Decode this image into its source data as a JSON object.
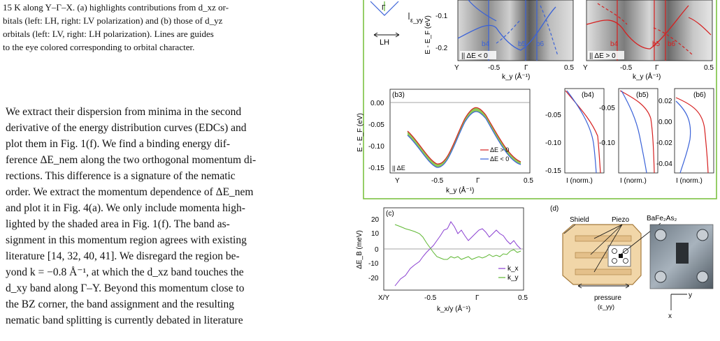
{
  "caption_lines": [
    "15 K along Y–Γ–X. (a) highlights contributions from d_xz or-",
    "bitals (left: LH, right: LV polarization) and (b) those of d_yz",
    "orbitals (left: LV, right: LH polarization). Lines are guides",
    "to the eye colored corresponding to orbital character."
  ],
  "body_lines": [
    "We extract their dispersion from minima in the second",
    "derivative of the energy distribution curves (EDCs) and",
    "plot them in Fig. 1(f). We find a binding energy dif-",
    "ference ΔE_nem along the two orthogonal momentum di-",
    "rections. This difference is a signature of the nematic",
    "order. We extract the momentum dependence of ΔE_nem",
    "and plot it in Fig. 4(a). We only include momenta high-",
    "lighted by the shaded area in Fig. 1(f). The band as-",
    "signment in this momentum region agrees with existing",
    "literature [14, 32, 40, 41]. We disregard the region be-",
    "yond k = −0.8 Å⁻¹, at which the d_xz band touches the",
    "d_xy band along Γ–Y. Beyond this momentum close to",
    "the BZ corner, the band assignment and the resulting",
    "nematic band splitting is currently debated in literature"
  ],
  "figure": {
    "top_left_panel": {
      "label": "|| ΔE < 0",
      "band_labels": [
        "b4",
        "b5",
        "b6"
      ],
      "yticks": [
        "-0.1",
        "-0.2"
      ],
      "ylabel": "E - E_F (eV)",
      "xticks": [
        "Y",
        "-0.5",
        "Γ",
        "0.5"
      ],
      "xlabel": "k_y (Å⁻¹)"
    },
    "top_right_panel": {
      "label": "|| ΔE > 0",
      "band_labels": [
        "b4",
        "b5",
        "b6"
      ],
      "xticks": [
        "Y",
        "-0.5",
        "Γ",
        "0.5"
      ],
      "xlabel": "k_y (Å⁻¹)"
    },
    "inset": {
      "gamma": "Γ",
      "eps": "ε_yy",
      "pol": "LH"
    },
    "b3": {
      "label": "(b3)",
      "ylabel": "E - E_F (eV)",
      "yticks": [
        "0.00",
        "-0.05",
        "-0.10",
        "-0.15"
      ],
      "xticks": [
        "Y",
        "-0.5",
        "Γ",
        "0.5"
      ],
      "xlabel": "k_y (Å⁻¹)",
      "legend": [
        "ΔE > 0",
        "ΔE < 0"
      ],
      "corner": "|| ΔE"
    },
    "b4": {
      "label": "(b4)",
      "yticks": [
        "-0.05",
        "-0.10",
        "-0.15"
      ],
      "xlabel": "I (norm.)"
    },
    "b5": {
      "label": "(b5)",
      "yticks": [
        "-0.05",
        "-0.10"
      ],
      "xlabel": "I (norm.)"
    },
    "b6": {
      "label": "(b6)",
      "yticks": [
        "0.02",
        "0.00",
        "-0.02",
        "-0.04"
      ],
      "xlabel": "I (norm.)"
    },
    "c": {
      "label": "(c)",
      "ylabel": "ΔE_B (meV)",
      "yticks": [
        "20",
        "10",
        "0",
        "-10",
        "-20"
      ],
      "xticks": [
        "X/Y",
        "-0.5",
        "Γ",
        "0.5"
      ],
      "xlabel": "k_x/y (Å⁻¹)",
      "legend": [
        "k_x",
        "k_y"
      ]
    },
    "d": {
      "label": "(d)",
      "shield": "Shield",
      "piezo": "Piezo",
      "sample": "BaFe₂As₂",
      "pressure": "pressure",
      "eps": "(ε_yy)",
      "axis_y": "y",
      "axis_x": "x"
    }
  },
  "colors": {
    "red": "#d62020",
    "blue": "#3a62d8",
    "green": "#5fb833",
    "purple": "#8a3fd1",
    "frame": "#7cc242"
  }
}
